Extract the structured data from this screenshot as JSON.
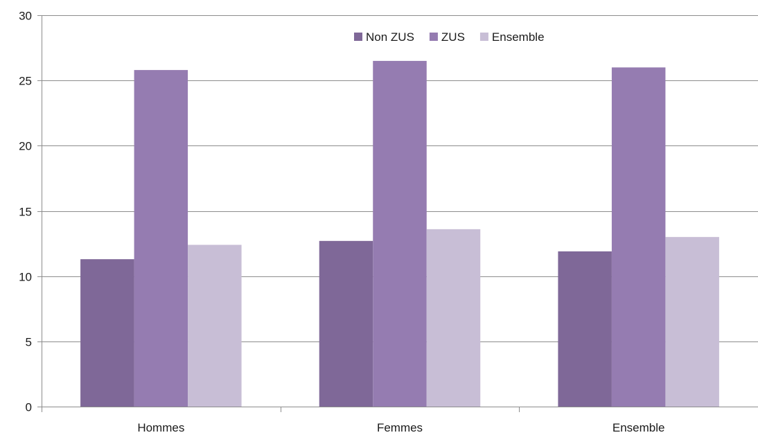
{
  "chart_data": {
    "type": "bar",
    "title": "",
    "xlabel": "",
    "ylabel": "",
    "categories": [
      "Hommes",
      "Femmes",
      "Ensemble"
    ],
    "series": [
      {
        "name": "Non ZUS",
        "color": "#7f6898",
        "values": [
          11.3,
          12.7,
          11.9
        ]
      },
      {
        "name": "ZUS",
        "color": "#957cb1",
        "values": [
          25.8,
          26.5,
          26.0
        ]
      },
      {
        "name": "Ensemble",
        "color": "#c8bed6",
        "values": [
          12.4,
          13.6,
          13.0
        ]
      }
    ],
    "ylim": [
      0,
      30
    ],
    "yticks": [
      "0",
      "5",
      "10",
      "15",
      "20",
      "25",
      "30"
    ],
    "grid": true,
    "legend_position": "top-center"
  }
}
